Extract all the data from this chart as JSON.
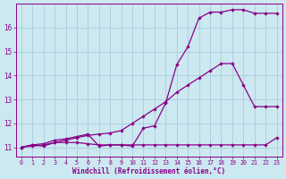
{
  "xlabel": "Windchill (Refroidissement éolien,°C)",
  "xlim": [
    -0.5,
    23.5
  ],
  "ylim": [
    10.6,
    17.0
  ],
  "xticks": [
    0,
    1,
    2,
    3,
    4,
    5,
    6,
    7,
    8,
    9,
    10,
    11,
    12,
    13,
    14,
    15,
    16,
    17,
    18,
    19,
    20,
    21,
    22,
    23
  ],
  "yticks": [
    11,
    12,
    13,
    14,
    15,
    16
  ],
  "background_color": "#cce8f0",
  "grid_color": "#aaccdd",
  "line_color": "#880088",
  "line1_x": [
    0,
    1,
    2,
    3,
    4,
    5,
    6,
    7,
    8,
    9,
    10,
    11,
    12,
    13,
    14,
    15,
    16,
    17,
    18,
    19,
    20,
    21,
    22,
    23
  ],
  "line1_y": [
    11.0,
    11.1,
    11.05,
    11.2,
    11.2,
    11.2,
    11.15,
    11.1,
    11.1,
    11.1,
    11.1,
    11.1,
    11.1,
    11.1,
    11.1,
    11.1,
    11.1,
    11.1,
    11.1,
    11.1,
    11.1,
    11.1,
    11.1,
    11.4
  ],
  "line2_x": [
    0,
    1,
    2,
    3,
    4,
    5,
    6,
    7,
    8,
    9,
    10,
    11,
    12,
    13,
    14,
    15,
    16,
    17,
    18,
    19,
    20,
    21,
    22,
    23
  ],
  "line2_y": [
    11.0,
    11.05,
    11.1,
    11.2,
    11.3,
    11.4,
    11.5,
    11.55,
    11.6,
    11.7,
    12.0,
    12.3,
    12.6,
    12.9,
    13.3,
    13.6,
    13.9,
    14.2,
    14.5,
    14.5,
    13.6,
    12.7,
    12.7,
    12.7
  ],
  "line3_x": [
    0,
    1,
    2,
    3,
    4,
    5,
    6,
    7,
    8,
    9,
    10,
    11,
    12,
    13,
    14,
    15,
    16,
    17,
    18,
    19,
    20,
    21,
    22,
    23
  ],
  "line3_y": [
    11.0,
    11.1,
    11.15,
    11.3,
    11.35,
    11.45,
    11.55,
    11.05,
    11.1,
    11.1,
    11.05,
    11.8,
    11.9,
    12.85,
    14.45,
    15.2,
    16.4,
    16.65,
    16.65,
    16.75,
    16.75,
    16.6,
    16.6,
    16.6
  ],
  "marker": "D",
  "markersize": 2.2,
  "linewidth": 0.9,
  "xtick_fontsize": 4.8,
  "ytick_fontsize": 5.5,
  "xlabel_fontsize": 5.5
}
